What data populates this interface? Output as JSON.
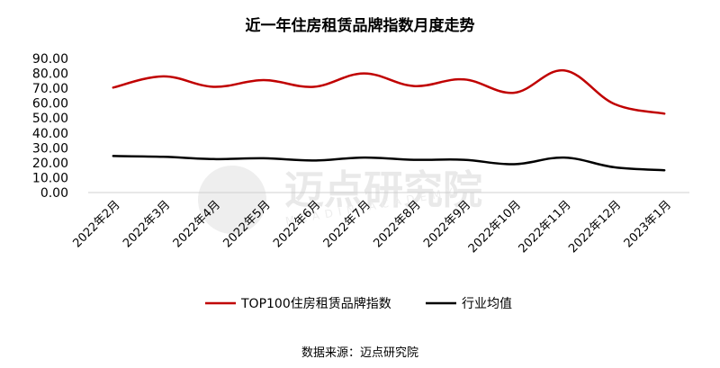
{
  "chart_data": {
    "type": "line",
    "title": "近一年住房租赁品牌指数月度走势",
    "categories": [
      "2022年2月",
      "2022年3月",
      "2022年4月",
      "2022年5月",
      "2022年6月",
      "2022年7月",
      "2022年8月",
      "2022年9月",
      "2022年10月",
      "2022年11月",
      "2022年12月",
      "2023年1月"
    ],
    "series": [
      {
        "name": "TOP100住房租赁品牌指数",
        "color": "#c00000",
        "values": [
          70.5,
          78.0,
          71.0,
          75.5,
          71.0,
          80.0,
          71.5,
          76.0,
          67.0,
          82.0,
          59.5,
          53.0
        ]
      },
      {
        "name": "行业均值",
        "color": "#000000",
        "values": [
          24.5,
          24.0,
          22.5,
          23.0,
          21.5,
          23.5,
          22.0,
          22.0,
          19.0,
          23.5,
          17.0,
          15.0
        ]
      }
    ],
    "yticks": [
      "0.00",
      "10.00",
      "20.00",
      "30.00",
      "40.00",
      "50.00",
      "60.00",
      "70.00",
      "80.00",
      "90.00"
    ],
    "ylim": [
      0,
      90
    ],
    "grid": false,
    "legend_position": "bottom",
    "source": "数据来源：迈点研究院",
    "watermark": {
      "name": "迈点研究院",
      "sub": "MEADIN ACADEMY"
    }
  }
}
